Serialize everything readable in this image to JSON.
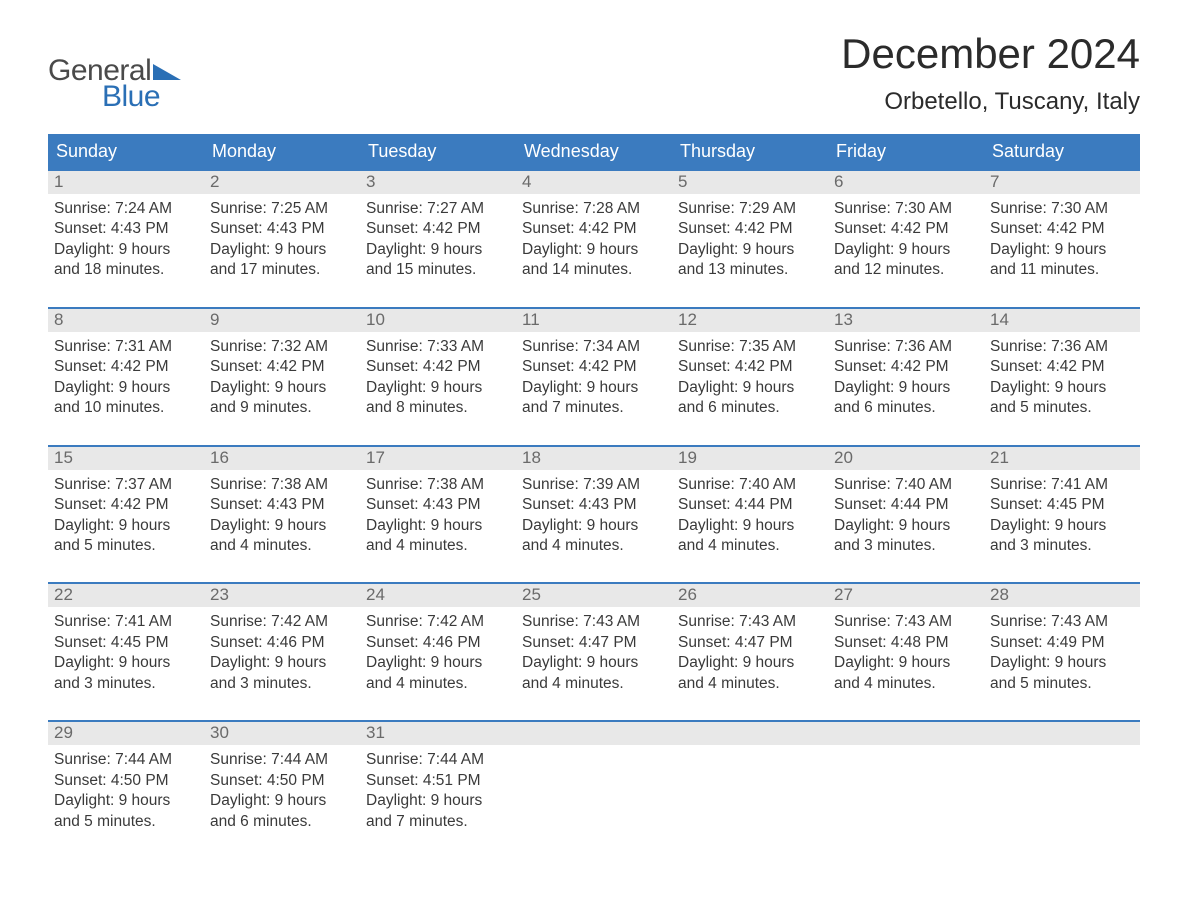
{
  "logo": {
    "word1": "General",
    "word2": "Blue",
    "text_color": "#4a4a4a",
    "accent_color": "#2a6fb5"
  },
  "title": "December 2024",
  "location": "Orbetello, Tuscany, Italy",
  "colors": {
    "header_bg": "#3b7bbf",
    "header_text": "#ffffff",
    "daynum_bg": "#e8e8e8",
    "daynum_text": "#6a6a6a",
    "body_text": "#3a3a3a",
    "week_border": "#3b7bbf",
    "page_bg": "#ffffff"
  },
  "typography": {
    "title_fontsize": 42,
    "location_fontsize": 24,
    "weekday_fontsize": 18,
    "daynum_fontsize": 17,
    "detail_fontsize": 15.5,
    "logo_fontsize": 30
  },
  "weekdays": [
    "Sunday",
    "Monday",
    "Tuesday",
    "Wednesday",
    "Thursday",
    "Friday",
    "Saturday"
  ],
  "weeks": [
    {
      "days": [
        {
          "num": "1",
          "sunrise": "Sunrise: 7:24 AM",
          "sunset": "Sunset: 4:43 PM",
          "day1": "Daylight: 9 hours",
          "day2": "and 18 minutes."
        },
        {
          "num": "2",
          "sunrise": "Sunrise: 7:25 AM",
          "sunset": "Sunset: 4:43 PM",
          "day1": "Daylight: 9 hours",
          "day2": "and 17 minutes."
        },
        {
          "num": "3",
          "sunrise": "Sunrise: 7:27 AM",
          "sunset": "Sunset: 4:42 PM",
          "day1": "Daylight: 9 hours",
          "day2": "and 15 minutes."
        },
        {
          "num": "4",
          "sunrise": "Sunrise: 7:28 AM",
          "sunset": "Sunset: 4:42 PM",
          "day1": "Daylight: 9 hours",
          "day2": "and 14 minutes."
        },
        {
          "num": "5",
          "sunrise": "Sunrise: 7:29 AM",
          "sunset": "Sunset: 4:42 PM",
          "day1": "Daylight: 9 hours",
          "day2": "and 13 minutes."
        },
        {
          "num": "6",
          "sunrise": "Sunrise: 7:30 AM",
          "sunset": "Sunset: 4:42 PM",
          "day1": "Daylight: 9 hours",
          "day2": "and 12 minutes."
        },
        {
          "num": "7",
          "sunrise": "Sunrise: 7:30 AM",
          "sunset": "Sunset: 4:42 PM",
          "day1": "Daylight: 9 hours",
          "day2": "and 11 minutes."
        }
      ]
    },
    {
      "days": [
        {
          "num": "8",
          "sunrise": "Sunrise: 7:31 AM",
          "sunset": "Sunset: 4:42 PM",
          "day1": "Daylight: 9 hours",
          "day2": "and 10 minutes."
        },
        {
          "num": "9",
          "sunrise": "Sunrise: 7:32 AM",
          "sunset": "Sunset: 4:42 PM",
          "day1": "Daylight: 9 hours",
          "day2": "and 9 minutes."
        },
        {
          "num": "10",
          "sunrise": "Sunrise: 7:33 AM",
          "sunset": "Sunset: 4:42 PM",
          "day1": "Daylight: 9 hours",
          "day2": "and 8 minutes."
        },
        {
          "num": "11",
          "sunrise": "Sunrise: 7:34 AM",
          "sunset": "Sunset: 4:42 PM",
          "day1": "Daylight: 9 hours",
          "day2": "and 7 minutes."
        },
        {
          "num": "12",
          "sunrise": "Sunrise: 7:35 AM",
          "sunset": "Sunset: 4:42 PM",
          "day1": "Daylight: 9 hours",
          "day2": "and 6 minutes."
        },
        {
          "num": "13",
          "sunrise": "Sunrise: 7:36 AM",
          "sunset": "Sunset: 4:42 PM",
          "day1": "Daylight: 9 hours",
          "day2": "and 6 minutes."
        },
        {
          "num": "14",
          "sunrise": "Sunrise: 7:36 AM",
          "sunset": "Sunset: 4:42 PM",
          "day1": "Daylight: 9 hours",
          "day2": "and 5 minutes."
        }
      ]
    },
    {
      "days": [
        {
          "num": "15",
          "sunrise": "Sunrise: 7:37 AM",
          "sunset": "Sunset: 4:42 PM",
          "day1": "Daylight: 9 hours",
          "day2": "and 5 minutes."
        },
        {
          "num": "16",
          "sunrise": "Sunrise: 7:38 AM",
          "sunset": "Sunset: 4:43 PM",
          "day1": "Daylight: 9 hours",
          "day2": "and 4 minutes."
        },
        {
          "num": "17",
          "sunrise": "Sunrise: 7:38 AM",
          "sunset": "Sunset: 4:43 PM",
          "day1": "Daylight: 9 hours",
          "day2": "and 4 minutes."
        },
        {
          "num": "18",
          "sunrise": "Sunrise: 7:39 AM",
          "sunset": "Sunset: 4:43 PM",
          "day1": "Daylight: 9 hours",
          "day2": "and 4 minutes."
        },
        {
          "num": "19",
          "sunrise": "Sunrise: 7:40 AM",
          "sunset": "Sunset: 4:44 PM",
          "day1": "Daylight: 9 hours",
          "day2": "and 4 minutes."
        },
        {
          "num": "20",
          "sunrise": "Sunrise: 7:40 AM",
          "sunset": "Sunset: 4:44 PM",
          "day1": "Daylight: 9 hours",
          "day2": "and 3 minutes."
        },
        {
          "num": "21",
          "sunrise": "Sunrise: 7:41 AM",
          "sunset": "Sunset: 4:45 PM",
          "day1": "Daylight: 9 hours",
          "day2": "and 3 minutes."
        }
      ]
    },
    {
      "days": [
        {
          "num": "22",
          "sunrise": "Sunrise: 7:41 AM",
          "sunset": "Sunset: 4:45 PM",
          "day1": "Daylight: 9 hours",
          "day2": "and 3 minutes."
        },
        {
          "num": "23",
          "sunrise": "Sunrise: 7:42 AM",
          "sunset": "Sunset: 4:46 PM",
          "day1": "Daylight: 9 hours",
          "day2": "and 3 minutes."
        },
        {
          "num": "24",
          "sunrise": "Sunrise: 7:42 AM",
          "sunset": "Sunset: 4:46 PM",
          "day1": "Daylight: 9 hours",
          "day2": "and 4 minutes."
        },
        {
          "num": "25",
          "sunrise": "Sunrise: 7:43 AM",
          "sunset": "Sunset: 4:47 PM",
          "day1": "Daylight: 9 hours",
          "day2": "and 4 minutes."
        },
        {
          "num": "26",
          "sunrise": "Sunrise: 7:43 AM",
          "sunset": "Sunset: 4:47 PM",
          "day1": "Daylight: 9 hours",
          "day2": "and 4 minutes."
        },
        {
          "num": "27",
          "sunrise": "Sunrise: 7:43 AM",
          "sunset": "Sunset: 4:48 PM",
          "day1": "Daylight: 9 hours",
          "day2": "and 4 minutes."
        },
        {
          "num": "28",
          "sunrise": "Sunrise: 7:43 AM",
          "sunset": "Sunset: 4:49 PM",
          "day1": "Daylight: 9 hours",
          "day2": "and 5 minutes."
        }
      ]
    },
    {
      "days": [
        {
          "num": "29",
          "sunrise": "Sunrise: 7:44 AM",
          "sunset": "Sunset: 4:50 PM",
          "day1": "Daylight: 9 hours",
          "day2": "and 5 minutes."
        },
        {
          "num": "30",
          "sunrise": "Sunrise: 7:44 AM",
          "sunset": "Sunset: 4:50 PM",
          "day1": "Daylight: 9 hours",
          "day2": "and 6 minutes."
        },
        {
          "num": "31",
          "sunrise": "Sunrise: 7:44 AM",
          "sunset": "Sunset: 4:51 PM",
          "day1": "Daylight: 9 hours",
          "day2": "and 7 minutes."
        },
        {
          "num": "",
          "sunrise": "",
          "sunset": "",
          "day1": "",
          "day2": ""
        },
        {
          "num": "",
          "sunrise": "",
          "sunset": "",
          "day1": "",
          "day2": ""
        },
        {
          "num": "",
          "sunrise": "",
          "sunset": "",
          "day1": "",
          "day2": ""
        },
        {
          "num": "",
          "sunrise": "",
          "sunset": "",
          "day1": "",
          "day2": ""
        }
      ]
    }
  ]
}
